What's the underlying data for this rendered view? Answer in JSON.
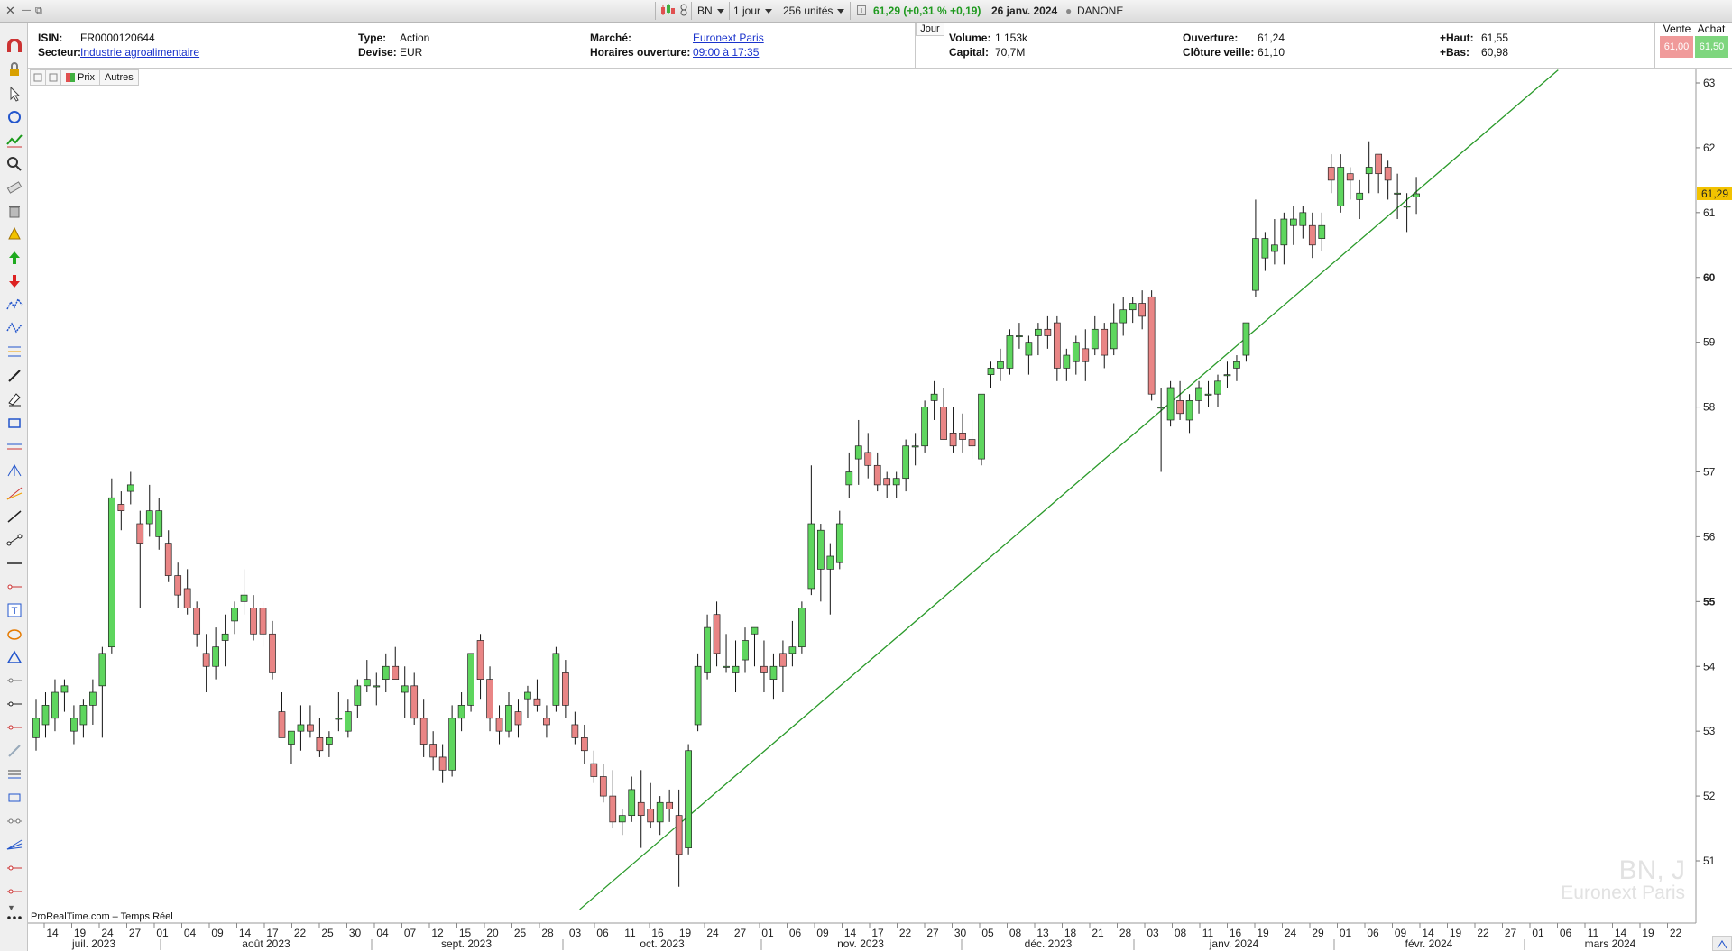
{
  "window": {
    "close": "✕",
    "minimize": "—",
    "restore": "⧉"
  },
  "topbar": {
    "ticker": "BN",
    "period": "1 jour",
    "units": "256 unités",
    "quote": "61,29 (+0,31 % +0,19)",
    "date": "26 janv. 2024",
    "name": "DANONE"
  },
  "info": {
    "isin_label": "ISIN:",
    "isin": "FR0000120644",
    "secteur_label": "Secteur:",
    "secteur": "Industrie agroalimentaire",
    "type_label": "Type:",
    "type": "Action",
    "devise_label": "Devise:",
    "devise": "EUR",
    "marche_label": "Marché:",
    "marche": "Euronext Paris",
    "horaires_label": "Horaires ouverture:",
    "horaires": "09:00 à 17:35",
    "jour_tag": "Jour",
    "volume_label": "Volume:",
    "volume": "1 153k",
    "capital_label": "Capital:",
    "capital": "70,7M",
    "ouverture_label": "Ouverture:",
    "ouverture": "61,24",
    "cloture_label": "Clôture veille:",
    "cloture": "61,10",
    "haut_label": "+Haut:",
    "haut": "61,55",
    "bas_label": "+Bas:",
    "bas": "60,98",
    "vente_label": "Vente",
    "vente": "61,00",
    "achat_label": "Achat",
    "achat": "61,50"
  },
  "chart_toolbar": {
    "prix": "Prix",
    "autres": "Autres"
  },
  "footer": {
    "source": "ProRealTime.com – Temps Réel"
  },
  "watermark": {
    "symbol": "BN, J",
    "market": "Euronext Paris"
  },
  "colors": {
    "up": "#5ed65e",
    "down": "#e98585",
    "trend": "#2a9a2a",
    "last_price": "#f2c200"
  },
  "chart_data": {
    "type": "candlestick",
    "title": "",
    "ylim": [
      50.4,
      63.3
    ],
    "yticks": [
      "51",
      "52",
      "53",
      "54",
      "55",
      "56",
      "57",
      "58",
      "59",
      "60",
      "61",
      "62",
      "63"
    ],
    "last_price_label": "61,29",
    "last_price": 61.29,
    "xticks": [
      "14",
      "19",
      "24",
      "27",
      "01",
      "04",
      "09",
      "14",
      "17",
      "22",
      "25",
      "30",
      "04",
      "07",
      "12",
      "15",
      "20",
      "25",
      "28",
      "03",
      "06",
      "11",
      "16",
      "19",
      "24",
      "27",
      "01",
      "06",
      "09",
      "14",
      "17",
      "22",
      "27",
      "30",
      "05",
      "08",
      "13",
      "18",
      "21",
      "28",
      "03",
      "08",
      "11",
      "16",
      "19",
      "24",
      "29",
      "01",
      "06",
      "09",
      "14",
      "19",
      "22",
      "27",
      "01",
      "06",
      "11",
      "14",
      "19",
      "22"
    ],
    "months": [
      "juil. 2023",
      "août 2023",
      "sept. 2023",
      "oct. 2023",
      "nov. 2023",
      "déc. 2023",
      "janv. 2024",
      "févr. 2024",
      "mars 2024"
    ],
    "candles": [
      {
        "o": 52.9,
        "h": 53.5,
        "l": 52.7,
        "c": 53.2
      },
      {
        "o": 53.1,
        "h": 53.6,
        "l": 52.9,
        "c": 53.4
      },
      {
        "o": 53.2,
        "h": 53.8,
        "l": 53.0,
        "c": 53.6
      },
      {
        "o": 53.6,
        "h": 53.8,
        "l": 53.3,
        "c": 53.7
      },
      {
        "o": 53.0,
        "h": 53.4,
        "l": 52.8,
        "c": 53.2
      },
      {
        "o": 53.1,
        "h": 53.5,
        "l": 52.9,
        "c": 53.4
      },
      {
        "o": 53.4,
        "h": 53.8,
        "l": 53.1,
        "c": 53.6
      },
      {
        "o": 53.7,
        "h": 54.3,
        "l": 52.9,
        "c": 54.2
      },
      {
        "o": 54.3,
        "h": 56.9,
        "l": 54.2,
        "c": 56.6
      },
      {
        "o": 56.5,
        "h": 56.7,
        "l": 56.1,
        "c": 56.4
      },
      {
        "o": 56.7,
        "h": 57.0,
        "l": 56.5,
        "c": 56.8
      },
      {
        "o": 56.2,
        "h": 56.4,
        "l": 54.9,
        "c": 55.9
      },
      {
        "o": 56.2,
        "h": 56.8,
        "l": 56.0,
        "c": 56.4
      },
      {
        "o": 56.0,
        "h": 56.6,
        "l": 55.8,
        "c": 56.4
      },
      {
        "o": 55.9,
        "h": 56.1,
        "l": 55.3,
        "c": 55.4
      },
      {
        "o": 55.4,
        "h": 55.6,
        "l": 54.9,
        "c": 55.1
      },
      {
        "o": 55.2,
        "h": 55.5,
        "l": 54.8,
        "c": 54.9
      },
      {
        "o": 54.9,
        "h": 55.0,
        "l": 54.3,
        "c": 54.5
      },
      {
        "o": 54.2,
        "h": 54.5,
        "l": 53.6,
        "c": 54.0
      },
      {
        "o": 54.0,
        "h": 54.6,
        "l": 53.8,
        "c": 54.3
      },
      {
        "o": 54.4,
        "h": 54.8,
        "l": 54.0,
        "c": 54.5
      },
      {
        "o": 54.7,
        "h": 55.0,
        "l": 54.5,
        "c": 54.9
      },
      {
        "o": 55.0,
        "h": 55.5,
        "l": 54.8,
        "c": 55.1
      },
      {
        "o": 54.9,
        "h": 55.1,
        "l": 54.4,
        "c": 54.5
      },
      {
        "o": 54.9,
        "h": 55.0,
        "l": 54.3,
        "c": 54.5
      },
      {
        "o": 54.5,
        "h": 54.7,
        "l": 53.8,
        "c": 53.9
      },
      {
        "o": 53.3,
        "h": 53.6,
        "l": 52.9,
        "c": 52.9
      },
      {
        "o": 52.8,
        "h": 53.0,
        "l": 52.5,
        "c": 53.0
      },
      {
        "o": 53.0,
        "h": 53.4,
        "l": 52.7,
        "c": 53.1
      },
      {
        "o": 53.1,
        "h": 53.4,
        "l": 52.9,
        "c": 53.0
      },
      {
        "o": 52.9,
        "h": 53.2,
        "l": 52.6,
        "c": 52.7
      },
      {
        "o": 52.8,
        "h": 53.0,
        "l": 52.6,
        "c": 52.9
      },
      {
        "o": 53.2,
        "h": 53.6,
        "l": 53.0,
        "c": 53.2
      },
      {
        "o": 53.0,
        "h": 53.5,
        "l": 52.9,
        "c": 53.3
      },
      {
        "o": 53.4,
        "h": 53.8,
        "l": 53.2,
        "c": 53.7
      },
      {
        "o": 53.7,
        "h": 54.1,
        "l": 53.6,
        "c": 53.8
      },
      {
        "o": 53.7,
        "h": 53.9,
        "l": 53.4,
        "c": 53.7
      },
      {
        "o": 53.8,
        "h": 54.2,
        "l": 53.6,
        "c": 54.0
      },
      {
        "o": 54.0,
        "h": 54.3,
        "l": 53.8,
        "c": 53.8
      },
      {
        "o": 53.6,
        "h": 54.0,
        "l": 53.2,
        "c": 53.7
      },
      {
        "o": 53.7,
        "h": 53.9,
        "l": 53.1,
        "c": 53.2
      },
      {
        "o": 53.2,
        "h": 53.5,
        "l": 52.6,
        "c": 52.8
      },
      {
        "o": 52.8,
        "h": 53.0,
        "l": 52.4,
        "c": 52.6
      },
      {
        "o": 52.6,
        "h": 52.8,
        "l": 52.2,
        "c": 52.4
      },
      {
        "o": 52.4,
        "h": 53.4,
        "l": 52.3,
        "c": 53.2
      },
      {
        "o": 53.2,
        "h": 53.6,
        "l": 53.0,
        "c": 53.4
      },
      {
        "o": 53.4,
        "h": 54.2,
        "l": 53.3,
        "c": 54.2
      },
      {
        "o": 54.4,
        "h": 54.5,
        "l": 53.5,
        "c": 53.8
      },
      {
        "o": 53.8,
        "h": 54.0,
        "l": 53.0,
        "c": 53.2
      },
      {
        "o": 53.2,
        "h": 53.4,
        "l": 52.8,
        "c": 53.0
      },
      {
        "o": 53.0,
        "h": 53.6,
        "l": 52.9,
        "c": 53.4
      },
      {
        "o": 53.3,
        "h": 53.5,
        "l": 52.9,
        "c": 53.1
      },
      {
        "o": 53.5,
        "h": 53.7,
        "l": 53.2,
        "c": 53.6
      },
      {
        "o": 53.5,
        "h": 53.8,
        "l": 53.3,
        "c": 53.4
      },
      {
        "o": 53.2,
        "h": 53.4,
        "l": 52.9,
        "c": 53.1
      },
      {
        "o": 53.4,
        "h": 54.3,
        "l": 53.3,
        "c": 54.2
      },
      {
        "o": 53.9,
        "h": 54.1,
        "l": 53.2,
        "c": 53.4
      },
      {
        "o": 53.1,
        "h": 53.3,
        "l": 52.8,
        "c": 52.9
      },
      {
        "o": 52.9,
        "h": 53.1,
        "l": 52.5,
        "c": 52.7
      },
      {
        "o": 52.5,
        "h": 52.7,
        "l": 52.2,
        "c": 52.3
      },
      {
        "o": 52.3,
        "h": 52.5,
        "l": 51.9,
        "c": 52.0
      },
      {
        "o": 52.0,
        "h": 52.4,
        "l": 51.5,
        "c": 51.6
      },
      {
        "o": 51.6,
        "h": 51.8,
        "l": 51.4,
        "c": 51.7
      },
      {
        "o": 51.7,
        "h": 52.3,
        "l": 51.6,
        "c": 52.1
      },
      {
        "o": 51.9,
        "h": 52.4,
        "l": 51.2,
        "c": 51.7
      },
      {
        "o": 51.8,
        "h": 52.2,
        "l": 51.5,
        "c": 51.6
      },
      {
        "o": 51.6,
        "h": 52.0,
        "l": 51.4,
        "c": 51.9
      },
      {
        "o": 51.9,
        "h": 52.1,
        "l": 51.6,
        "c": 51.8
      },
      {
        "o": 51.7,
        "h": 52.1,
        "l": 50.6,
        "c": 51.1
      },
      {
        "o": 51.2,
        "h": 52.8,
        "l": 51.1,
        "c": 52.7
      },
      {
        "o": 53.1,
        "h": 54.2,
        "l": 53.0,
        "c": 54.0
      },
      {
        "o": 53.9,
        "h": 54.8,
        "l": 53.8,
        "c": 54.6
      },
      {
        "o": 54.8,
        "h": 55.0,
        "l": 54.0,
        "c": 54.2
      },
      {
        "o": 54.0,
        "h": 54.5,
        "l": 53.9,
        "c": 54.0
      },
      {
        "o": 53.9,
        "h": 54.4,
        "l": 53.6,
        "c": 54.0
      },
      {
        "o": 54.1,
        "h": 54.6,
        "l": 53.9,
        "c": 54.4
      },
      {
        "o": 54.5,
        "h": 54.6,
        "l": 54.0,
        "c": 54.6
      },
      {
        "o": 54.0,
        "h": 54.4,
        "l": 53.6,
        "c": 53.9
      },
      {
        "o": 53.8,
        "h": 54.2,
        "l": 53.5,
        "c": 54.0
      },
      {
        "o": 54.2,
        "h": 54.4,
        "l": 53.6,
        "c": 54.0
      },
      {
        "o": 54.2,
        "h": 54.7,
        "l": 54.0,
        "c": 54.3
      },
      {
        "o": 54.3,
        "h": 55.0,
        "l": 54.2,
        "c": 54.9
      },
      {
        "o": 55.2,
        "h": 57.1,
        "l": 55.1,
        "c": 56.2
      },
      {
        "o": 55.5,
        "h": 56.2,
        "l": 55.0,
        "c": 56.1
      },
      {
        "o": 55.5,
        "h": 55.9,
        "l": 54.8,
        "c": 55.7
      },
      {
        "o": 55.6,
        "h": 56.4,
        "l": 55.5,
        "c": 56.2
      },
      {
        "o": 56.8,
        "h": 57.3,
        "l": 56.6,
        "c": 57.0
      },
      {
        "o": 57.2,
        "h": 57.8,
        "l": 56.8,
        "c": 57.4
      },
      {
        "o": 57.3,
        "h": 57.6,
        "l": 56.9,
        "c": 57.1
      },
      {
        "o": 57.1,
        "h": 57.3,
        "l": 56.7,
        "c": 56.8
      },
      {
        "o": 56.9,
        "h": 57.0,
        "l": 56.6,
        "c": 56.8
      },
      {
        "o": 56.8,
        "h": 57.0,
        "l": 56.6,
        "c": 56.9
      },
      {
        "o": 56.9,
        "h": 57.5,
        "l": 56.7,
        "c": 57.4
      },
      {
        "o": 57.4,
        "h": 57.6,
        "l": 57.1,
        "c": 57.4
      },
      {
        "o": 57.4,
        "h": 58.1,
        "l": 57.3,
        "c": 58.0
      },
      {
        "o": 58.1,
        "h": 58.4,
        "l": 57.8,
        "c": 58.2
      },
      {
        "o": 58.0,
        "h": 58.3,
        "l": 57.5,
        "c": 57.5
      },
      {
        "o": 57.6,
        "h": 58.0,
        "l": 57.3,
        "c": 57.4
      },
      {
        "o": 57.6,
        "h": 57.9,
        "l": 57.3,
        "c": 57.5
      },
      {
        "o": 57.5,
        "h": 57.8,
        "l": 57.2,
        "c": 57.4
      },
      {
        "o": 57.2,
        "h": 58.2,
        "l": 57.1,
        "c": 58.2
      },
      {
        "o": 58.5,
        "h": 58.7,
        "l": 58.3,
        "c": 58.6
      },
      {
        "o": 58.6,
        "h": 58.9,
        "l": 58.4,
        "c": 58.7
      },
      {
        "o": 58.6,
        "h": 59.2,
        "l": 58.5,
        "c": 59.1
      },
      {
        "o": 59.1,
        "h": 59.3,
        "l": 58.9,
        "c": 59.1
      },
      {
        "o": 58.8,
        "h": 59.1,
        "l": 58.5,
        "c": 59.0
      },
      {
        "o": 59.1,
        "h": 59.3,
        "l": 58.8,
        "c": 59.2
      },
      {
        "o": 59.2,
        "h": 59.4,
        "l": 58.9,
        "c": 59.1
      },
      {
        "o": 59.3,
        "h": 59.4,
        "l": 58.4,
        "c": 58.6
      },
      {
        "o": 58.6,
        "h": 58.9,
        "l": 58.4,
        "c": 58.8
      },
      {
        "o": 58.7,
        "h": 59.1,
        "l": 58.5,
        "c": 59.0
      },
      {
        "o": 58.9,
        "h": 59.2,
        "l": 58.4,
        "c": 58.7
      },
      {
        "o": 58.9,
        "h": 59.4,
        "l": 58.8,
        "c": 59.2
      },
      {
        "o": 59.2,
        "h": 59.3,
        "l": 58.6,
        "c": 58.8
      },
      {
        "o": 58.9,
        "h": 59.6,
        "l": 58.8,
        "c": 59.3
      },
      {
        "o": 59.3,
        "h": 59.7,
        "l": 59.1,
        "c": 59.5
      },
      {
        "o": 59.5,
        "h": 59.7,
        "l": 59.3,
        "c": 59.6
      },
      {
        "o": 59.6,
        "h": 59.8,
        "l": 59.2,
        "c": 59.4
      },
      {
        "o": 59.7,
        "h": 59.8,
        "l": 58.1,
        "c": 58.2
      },
      {
        "o": 58.0,
        "h": 58.3,
        "l": 57.0,
        "c": 58.0
      },
      {
        "o": 57.8,
        "h": 58.4,
        "l": 57.7,
        "c": 58.3
      },
      {
        "o": 58.1,
        "h": 58.4,
        "l": 57.8,
        "c": 57.9
      },
      {
        "o": 57.8,
        "h": 58.2,
        "l": 57.6,
        "c": 58.1
      },
      {
        "o": 58.1,
        "h": 58.4,
        "l": 57.9,
        "c": 58.3
      },
      {
        "o": 58.2,
        "h": 58.4,
        "l": 58.0,
        "c": 58.2
      },
      {
        "o": 58.2,
        "h": 58.5,
        "l": 58.0,
        "c": 58.4
      },
      {
        "o": 58.5,
        "h": 58.7,
        "l": 58.3,
        "c": 58.5
      },
      {
        "o": 58.6,
        "h": 58.8,
        "l": 58.4,
        "c": 58.7
      },
      {
        "o": 58.8,
        "h": 59.3,
        "l": 58.7,
        "c": 59.3
      },
      {
        "o": 59.8,
        "h": 61.2,
        "l": 59.7,
        "c": 60.6
      },
      {
        "o": 60.3,
        "h": 60.7,
        "l": 60.1,
        "c": 60.6
      },
      {
        "o": 60.4,
        "h": 60.9,
        "l": 60.2,
        "c": 60.5
      },
      {
        "o": 60.5,
        "h": 61.0,
        "l": 60.2,
        "c": 60.9
      },
      {
        "o": 60.8,
        "h": 61.1,
        "l": 60.5,
        "c": 60.9
      },
      {
        "o": 60.8,
        "h": 61.1,
        "l": 60.6,
        "c": 61.0
      },
      {
        "o": 60.8,
        "h": 61.0,
        "l": 60.3,
        "c": 60.5
      },
      {
        "o": 60.6,
        "h": 61.0,
        "l": 60.4,
        "c": 60.8
      },
      {
        "o": 61.7,
        "h": 61.9,
        "l": 61.3,
        "c": 61.5
      },
      {
        "o": 61.1,
        "h": 61.9,
        "l": 61.0,
        "c": 61.7
      },
      {
        "o": 61.6,
        "h": 61.7,
        "l": 61.2,
        "c": 61.5
      },
      {
        "o": 61.2,
        "h": 61.5,
        "l": 60.9,
        "c": 61.3
      },
      {
        "o": 61.6,
        "h": 62.1,
        "l": 61.3,
        "c": 61.7
      },
      {
        "o": 61.9,
        "h": 61.9,
        "l": 61.3,
        "c": 61.6
      },
      {
        "o": 61.7,
        "h": 61.8,
        "l": 61.2,
        "c": 61.5
      },
      {
        "o": 61.3,
        "h": 61.6,
        "l": 60.9,
        "c": 61.3
      },
      {
        "o": 61.1,
        "h": 61.3,
        "l": 60.7,
        "c": 61.1
      },
      {
        "o": 61.24,
        "h": 61.55,
        "l": 60.98,
        "c": 61.29
      }
    ],
    "trendline": {
      "from": {
        "i": 57.5,
        "price": 50.25
      },
      "to": {
        "i": 161,
        "price": 63.2
      }
    }
  }
}
